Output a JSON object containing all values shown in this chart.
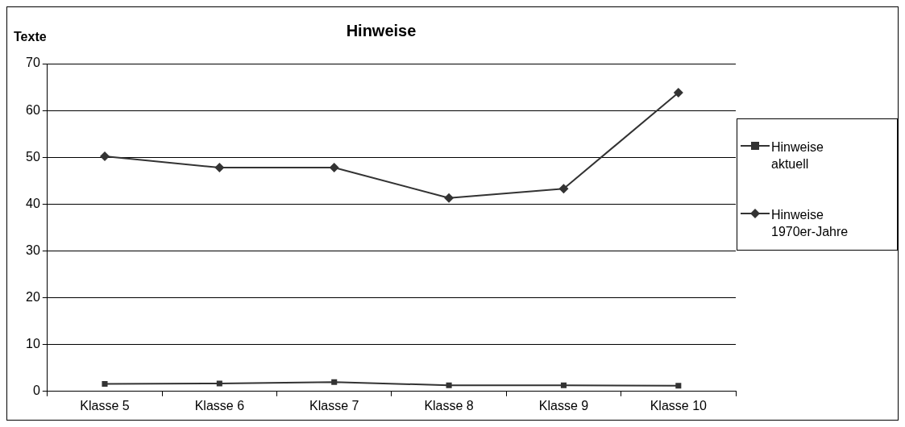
{
  "chart_data": {
    "type": "line",
    "title": "Hinweise",
    "ylabel": "Texte",
    "categories": [
      "Klasse 5",
      "Klasse 6",
      "Klasse 7",
      "Klasse 8",
      "Klasse 9",
      "Klasse 10"
    ],
    "series": [
      {
        "name": "Hinweise aktuell",
        "color": "#333333",
        "marker": "square",
        "values": [
          1.6,
          1.7,
          2.0,
          1.3,
          1.3,
          1.2
        ]
      },
      {
        "name": "Hinweise 1970er-Jahre",
        "color": "#333333",
        "marker": "diamond",
        "values": [
          50.2,
          47.8,
          47.8,
          41.3,
          43.3,
          63.8
        ]
      }
    ],
    "ylim": [
      0,
      70
    ],
    "yticks": [
      0,
      10,
      20,
      30,
      40,
      50,
      60,
      70
    ],
    "grid": "y",
    "legend": "right",
    "line_style": "solid"
  }
}
